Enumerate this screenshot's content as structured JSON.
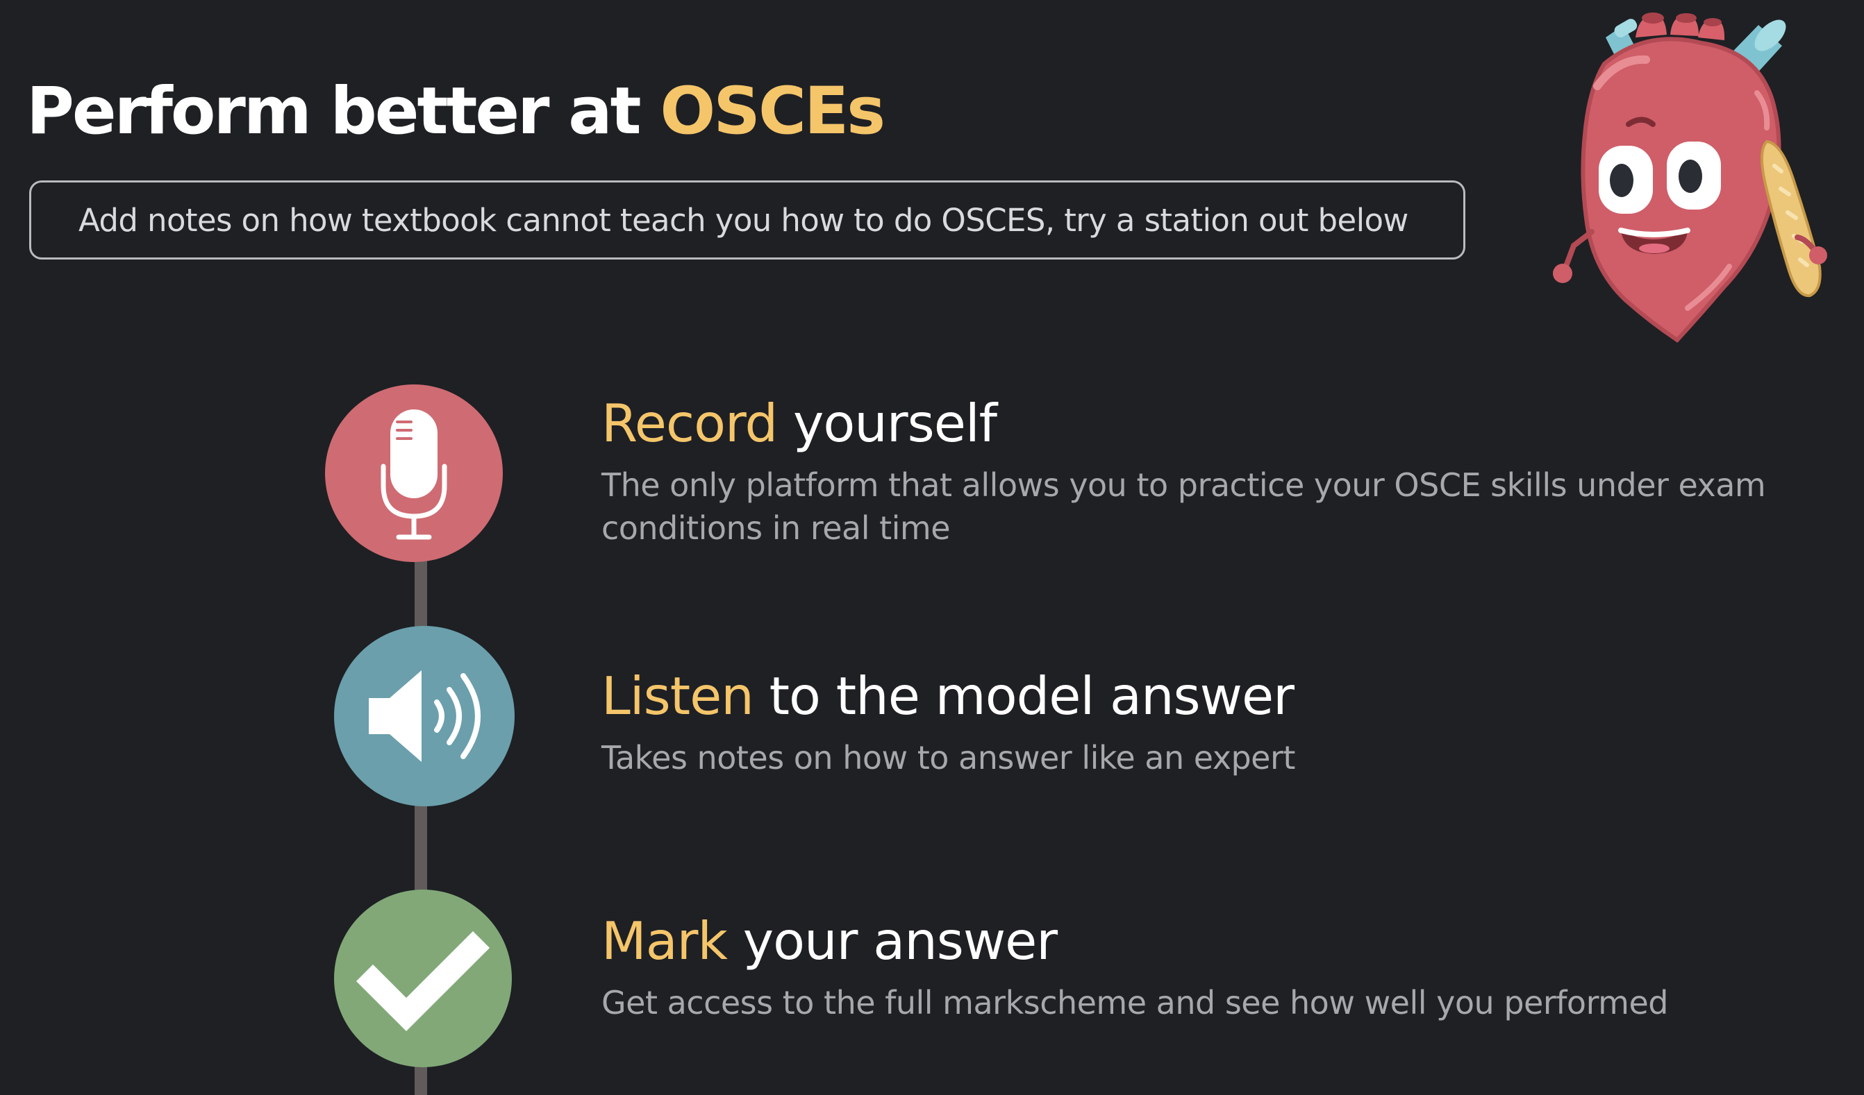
{
  "hero": {
    "title_main": "Perform better at ",
    "title_accent": "OSCEs"
  },
  "notes": {
    "text": "Add notes on how textbook cannot teach you how to do OSCES, try a station out below"
  },
  "steps": [
    {
      "icon": "microphone-icon",
      "heading_accent": "Record",
      "heading_rest": " yourself",
      "description": "The only platform that allows you to practice your OSCE skills under exam conditions in real time"
    },
    {
      "icon": "speaker-icon",
      "heading_accent": "Listen",
      "heading_rest": " to the model answer",
      "description": "Takes notes on how to answer like an expert"
    },
    {
      "icon": "checkmark-icon",
      "heading_accent": "Mark",
      "heading_rest": " your answer",
      "description": "Get access to the full markscheme and see how well you performed"
    }
  ],
  "colors": {
    "background": "#1e2024",
    "accent": "#f5c56a",
    "record": "#cf6b72",
    "listen": "#6b9fac",
    "mark": "#82a878",
    "timeline": "#615b5b"
  },
  "mascot": {
    "icon": "heart-mascot-icon"
  }
}
